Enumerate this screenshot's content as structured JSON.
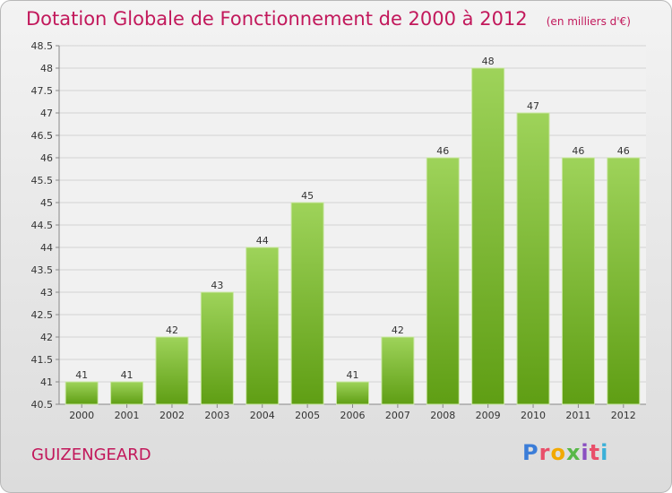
{
  "header": {
    "title": "Dotation Globale de Fonctionnement de 2000 à 2012",
    "subtitle": "(en milliers d'€)"
  },
  "footer": {
    "commune": "GUIZENGEARD",
    "logo_letters": [
      "P",
      "r",
      "o",
      "x",
      "i",
      "t",
      "i"
    ],
    "logo_colors": [
      "#3b7dd8",
      "#e94f6a",
      "#f2a900",
      "#58b848",
      "#8a4fc1",
      "#e94f6a",
      "#3bb0d8"
    ]
  },
  "colors": {
    "title": "#c2185b",
    "bar_top": "#9ed35a",
    "bar_bottom": "#5f9e14"
  },
  "chart_data": {
    "type": "bar",
    "categories": [
      "2000",
      "2001",
      "2002",
      "2003",
      "2004",
      "2005",
      "2006",
      "2007",
      "2008",
      "2009",
      "2010",
      "2011",
      "2012"
    ],
    "values": [
      41,
      41,
      42,
      43,
      44,
      45,
      41,
      42,
      46,
      48,
      47,
      46,
      46
    ],
    "ylim": [
      40.5,
      48.5
    ],
    "yticks": [
      40.5,
      41,
      41.5,
      42,
      42.5,
      43,
      43.5,
      44,
      44.5,
      45,
      45.5,
      46,
      46.5,
      47,
      47.5,
      48,
      48.5
    ],
    "grid": true
  }
}
